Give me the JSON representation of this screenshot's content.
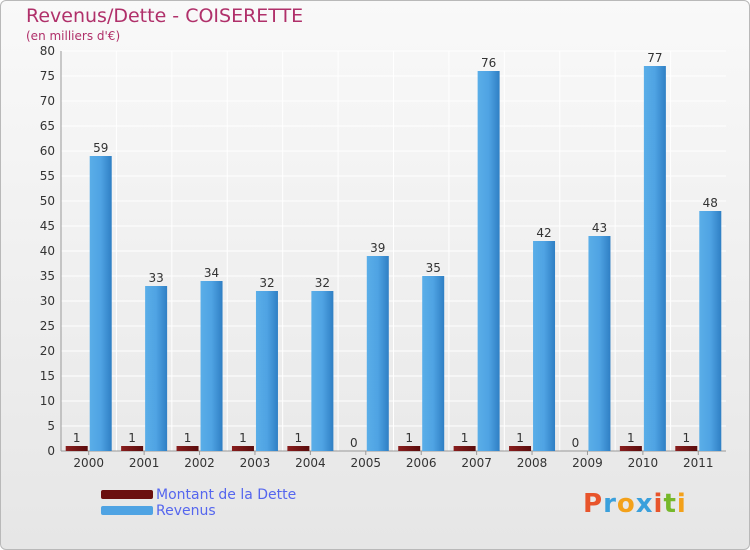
{
  "colors": {
    "debt": "#7a1414",
    "revenue": "#4fa3e3",
    "revenue_dark": "#2f7fc4",
    "title": "#b0306a",
    "legend_text": "#5566ee"
  },
  "logo": {
    "text": "Proxiti",
    "letters": [
      "P",
      "r",
      "o",
      "x",
      "i",
      "t",
      "i"
    ],
    "letter_colors": [
      "#e8542b",
      "#3aa0dc",
      "#f3a11a",
      "#3aa0dc",
      "#e8542b",
      "#76b82a",
      "#f3a11a"
    ]
  },
  "chart_data": {
    "type": "bar",
    "title": "Revenus/Dette - COISERETTE",
    "subtitle": "(en milliers d'€)",
    "xlabel": "",
    "ylabel": "",
    "ylim": [
      0,
      80
    ],
    "yticks": [
      0,
      5,
      10,
      15,
      20,
      25,
      30,
      35,
      40,
      45,
      50,
      55,
      60,
      65,
      70,
      75,
      80
    ],
    "grid": true,
    "legend_position": "bottom-left",
    "categories": [
      "2000",
      "2001",
      "2002",
      "2003",
      "2004",
      "2005",
      "2006",
      "2007",
      "2008",
      "2009",
      "2010",
      "2011"
    ],
    "series": [
      {
        "name": "Montant de la Dette",
        "values": [
          1,
          1,
          1,
          1,
          1,
          0,
          1,
          1,
          1,
          0,
          1,
          1
        ]
      },
      {
        "name": "Revenus",
        "values": [
          59,
          33,
          34,
          32,
          32,
          39,
          35,
          76,
          42,
          43,
          77,
          48
        ]
      }
    ]
  }
}
